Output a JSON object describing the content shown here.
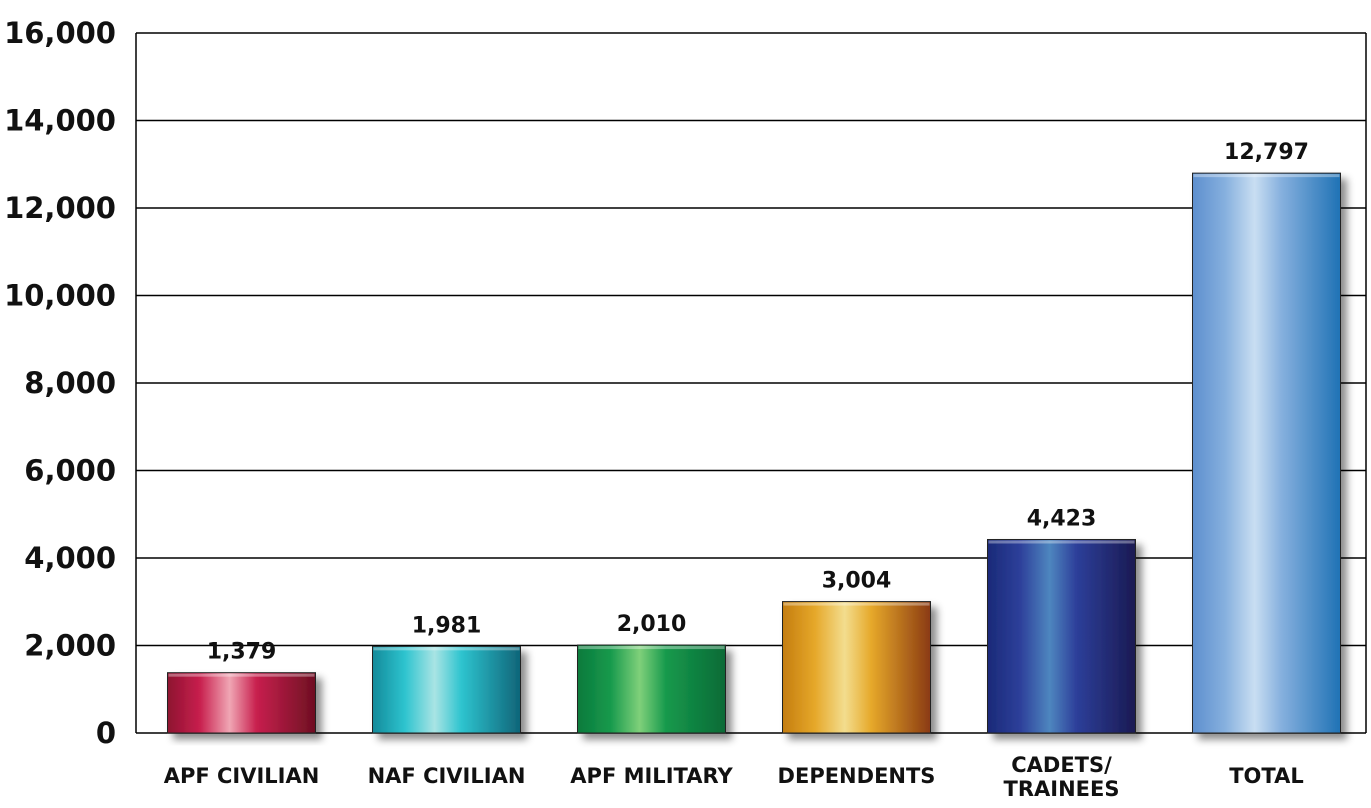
{
  "chart_data": {
    "type": "bar",
    "title": "",
    "xlabel": "",
    "ylabel": "",
    "ylim": [
      0,
      16000
    ],
    "yticks": [
      0,
      2000,
      4000,
      6000,
      8000,
      10000,
      12000,
      14000,
      16000
    ],
    "ytick_labels": [
      "0",
      "2,000",
      "4,000",
      "6,000",
      "8,000",
      "10,000",
      "12,000",
      "14,000",
      "16,000"
    ],
    "grid": "horizontal",
    "categories": [
      [
        "APF CIVILIAN"
      ],
      [
        "NAF CIVILIAN"
      ],
      [
        "APF MILITARY"
      ],
      [
        "DEPENDENTS"
      ],
      [
        "CADETS/",
        "TRAINEES"
      ],
      [
        "TOTAL"
      ]
    ],
    "values": [
      1379,
      1981,
      2010,
      3004,
      4423,
      12797
    ],
    "value_labels": [
      "1,379",
      "1,981",
      "2,010",
      "3,004",
      "4,423",
      "12,797"
    ],
    "bar_colors": [
      {
        "dark": "#8e1230",
        "mid": "#c8204e",
        "light": "#f0a6b4",
        "end": "#6e0f22"
      },
      {
        "dark": "#138a9a",
        "mid": "#2ec4cf",
        "light": "#a9e4e4",
        "end": "#0f6478"
      },
      {
        "dark": "#0d7a3c",
        "mid": "#15994c",
        "light": "#7fd07a",
        "end": "#0b6a36"
      },
      {
        "dark": "#c47d10",
        "mid": "#e6a82a",
        "light": "#f3dd8e",
        "end": "#8a3a12"
      },
      {
        "dark": "#1a2a78",
        "mid": "#2d3f9a",
        "light": "#4e86bf",
        "end": "#1a1a52"
      },
      {
        "dark": "#5d8fce",
        "mid": "#86b0de",
        "light": "#c9def2",
        "end": "#1f72b5"
      }
    ]
  }
}
